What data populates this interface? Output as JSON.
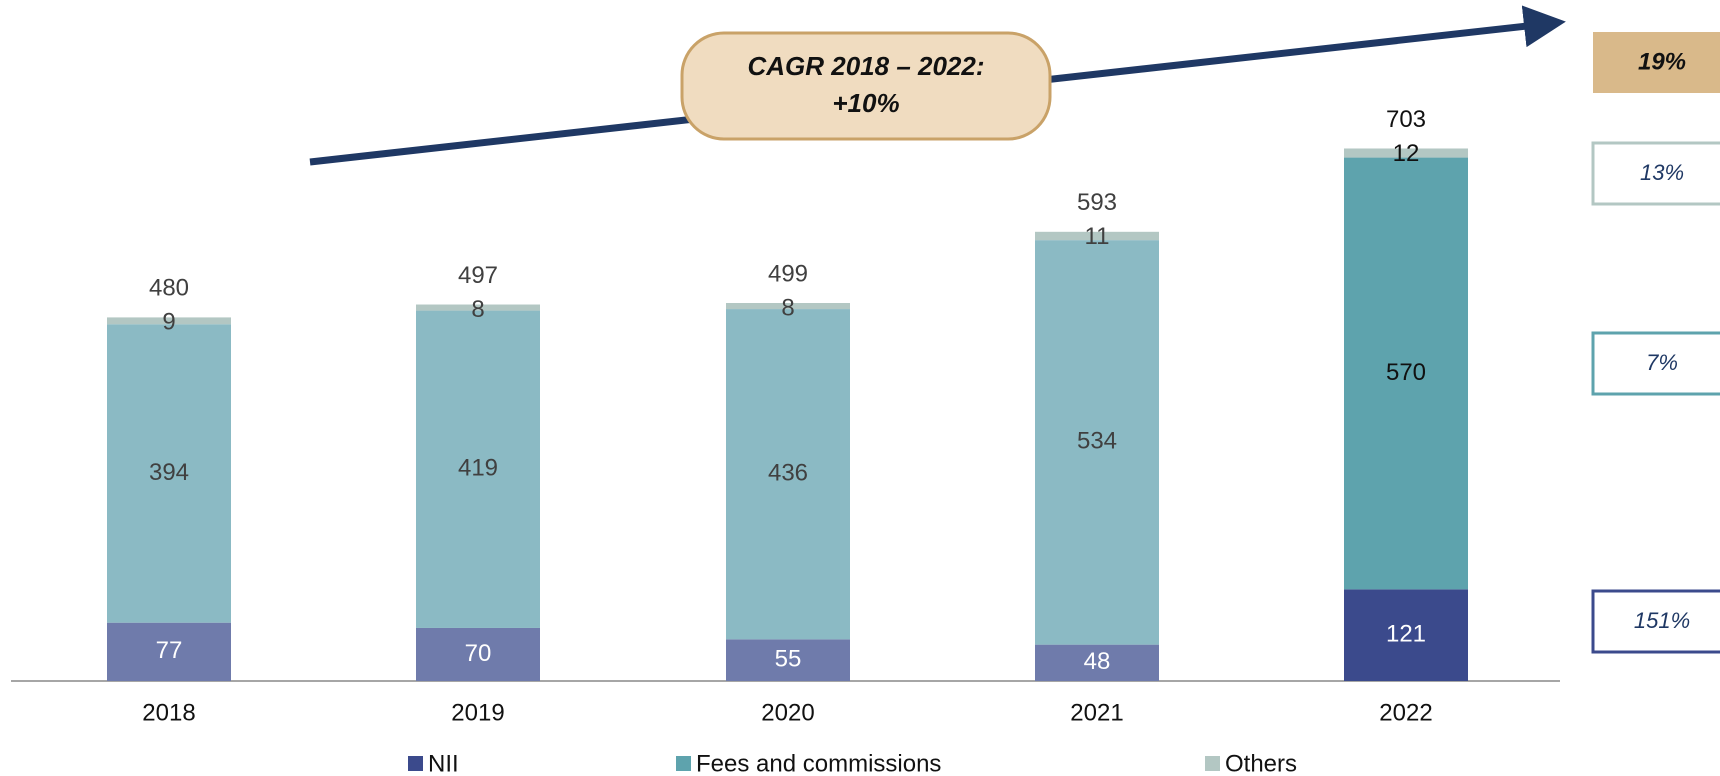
{
  "chart_data": {
    "type": "stacked_bar",
    "categories": [
      "2018",
      "2019",
      "2020",
      "2021",
      "2022"
    ],
    "series": [
      {
        "name": "NII",
        "color": "#3b4a8c",
        "colors": [
          "#6f7bab",
          "#6f7bab",
          "#6f7bab",
          "#6f7bab",
          "#3b4a8c"
        ],
        "values": [
          77,
          70,
          55,
          48,
          121
        ]
      },
      {
        "name": "Fees and commissions",
        "color": "#5ea3ad",
        "colors": [
          "#8bbac4",
          "#8bbac4",
          "#8bbac4",
          "#8bbac4",
          "#5ea3ad"
        ],
        "values": [
          394,
          419,
          436,
          534,
          570
        ]
      },
      {
        "name": "Others",
        "color": "#b3c7c3",
        "colors": [
          "#b3c7c3",
          "#b3c7c3",
          "#b3c7c3",
          "#b3c7c3",
          "#b3c7c3"
        ],
        "values": [
          9,
          8,
          8,
          11,
          12
        ]
      }
    ],
    "totals": [
      480,
      497,
      499,
      593,
      703
    ],
    "ylim": [
      0,
      800
    ],
    "annotation": [
      "CAGR 2018 – 2022:",
      "+10%"
    ],
    "growth": {
      "values": [
        19,
        13,
        7,
        151
      ],
      "value_labels": [
        "19%",
        "13%",
        "7%",
        "151%"
      ]
    }
  }
}
